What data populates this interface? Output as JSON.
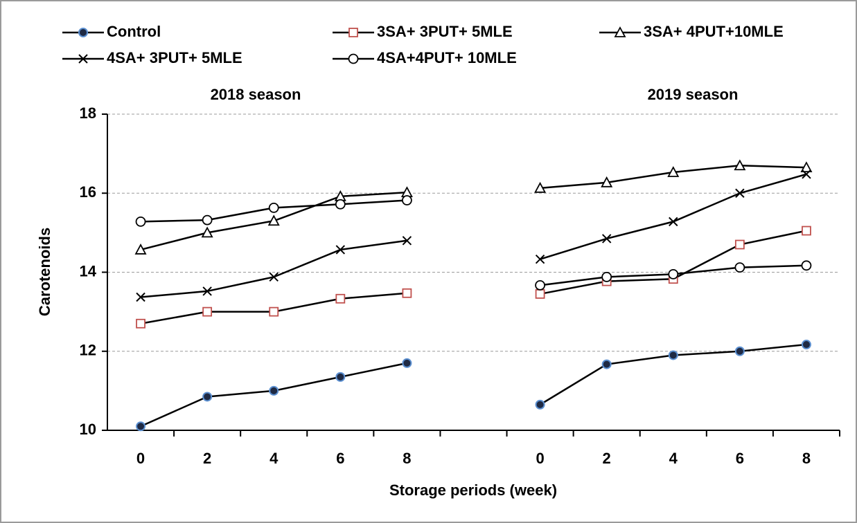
{
  "chart_data": {
    "type": "line",
    "x_label": "Storage periods (week)",
    "y_label": "Carotenoids",
    "annotations": [
      {
        "text": "2018 season"
      },
      {
        "text": "2019 season"
      }
    ],
    "categories": [
      "0",
      "2",
      "4",
      "6",
      "8",
      null,
      "0",
      "2",
      "4",
      "6",
      "8"
    ],
    "ylim": [
      10,
      18
    ],
    "yticks": [
      10,
      12,
      14,
      16,
      18
    ],
    "grid": true,
    "series": [
      {
        "name": "Control",
        "color": "#000000",
        "marker": "filled-circle",
        "marker_color": "#1f2a44",
        "values": [
          10.1,
          10.85,
          11.0,
          11.35,
          11.7,
          null,
          10.65,
          11.67,
          11.9,
          12.0,
          12.17
        ]
      },
      {
        "name": "3SA+ 3PUT+ 5MLE",
        "color": "#000000",
        "marker": "square",
        "marker_color": "#c0504d",
        "values": [
          12.7,
          13.0,
          13.0,
          13.33,
          13.47,
          null,
          13.45,
          13.77,
          13.83,
          14.7,
          15.05
        ]
      },
      {
        "name": "3SA+ 4PUT+10MLE",
        "color": "#000000",
        "marker": "triangle",
        "marker_color": "#000000",
        "values": [
          14.57,
          15.0,
          15.3,
          15.92,
          16.02,
          null,
          16.13,
          16.27,
          16.53,
          16.7,
          16.65
        ]
      },
      {
        "name": "4SA+ 3PUT+ 5MLE",
        "color": "#000000",
        "marker": "x",
        "marker_color": "#000000",
        "values": [
          13.37,
          13.52,
          13.88,
          14.57,
          14.8,
          null,
          14.33,
          14.85,
          15.28,
          16.0,
          16.48
        ]
      },
      {
        "name": "4SA+4PUT+ 10MLE",
        "color": "#000000",
        "marker": "circle",
        "marker_color": "#000000",
        "values": [
          15.28,
          15.32,
          15.63,
          15.72,
          15.82,
          null,
          13.67,
          13.88,
          13.95,
          14.12,
          14.17
        ]
      }
    ]
  }
}
